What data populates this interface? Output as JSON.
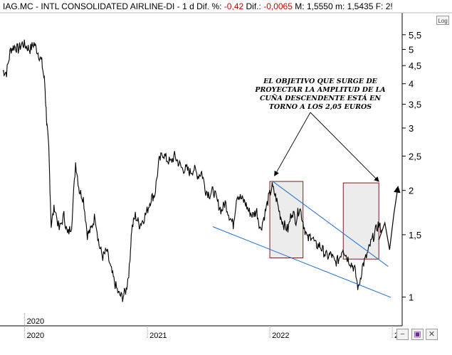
{
  "header": {
    "symbol": "IAG.MC",
    "name": "INTL CONSOLIDATED AIRLINE-DI",
    "period": "1 d",
    "dif_pct_label": "Dif. %:",
    "dif_pct": "-0,42",
    "dif_label": "Dif.:",
    "dif": "-0,0065",
    "max_label": "M:",
    "max": "1,5550",
    "min_label": "m:",
    "min": "1,5435",
    "f_label": "F: 2!"
  },
  "log_button": "Log",
  "toolbar": {
    "minus": "−",
    "save": "▣",
    "close": "✕"
  },
  "annotation": "EL OBJETIVO QUE SURGE DE PROYECTAR LA AMPLITUD DE LA CUÑA DESCENDENTE ESTÁ EN TORNO A LOS 2,05 EUROS",
  "colors": {
    "price": "#000000",
    "wedge": "#1f6fd0",
    "box_border": "#7a1f1f",
    "box_fill": "#ececec",
    "accent_negative": "#d40000"
  },
  "chart_data": {
    "type": "line",
    "scale": "log",
    "ylim": [
      0.91,
      6.0
    ],
    "y_ticks": [
      {
        "value": 1,
        "label": "1"
      },
      {
        "value": 1.5,
        "label": "1,5"
      },
      {
        "value": 2,
        "label": "2"
      },
      {
        "value": 2.5,
        "label": "2,5"
      },
      {
        "value": 3,
        "label": "3"
      },
      {
        "value": 3.5,
        "label": "3,5"
      },
      {
        "value": 4,
        "label": "4"
      },
      {
        "value": 4.5,
        "label": "4,5"
      },
      {
        "value": 5,
        "label": "5"
      },
      {
        "value": 5.5,
        "label": "5,5"
      }
    ],
    "x_range": [
      "2019-10-28",
      "2023-01-20"
    ],
    "x_ticks": [
      {
        "date": "2020-01-01",
        "label": "2020"
      },
      {
        "date": "2021-01-01",
        "label": "2021"
      },
      {
        "date": "2022-01-01",
        "label": "2022"
      },
      {
        "date": "2023-01-01",
        "label": "202"
      }
    ],
    "inner_label": {
      "date": "2020-01-01",
      "label": "2020"
    },
    "series": [
      {
        "values_note": "",
        "x": [
          "2019-10-28",
          "2019-11-08",
          "2019-11-20",
          "2019-12-02",
          "2019-12-13",
          "2019-12-25",
          "2020-01-06",
          "2020-01-17",
          "2020-01-29",
          "2020-02-10",
          "2020-02-21",
          "2020-03-01",
          "2020-03-07",
          "2020-03-13",
          "2020-03-20",
          "2020-03-30",
          "2020-04-13",
          "2020-04-27",
          "2020-05-08",
          "2020-05-20",
          "2020-06-01",
          "2020-06-12",
          "2020-06-24",
          "2020-07-06",
          "2020-07-17",
          "2020-07-29",
          "2020-08-10",
          "2020-08-21",
          "2020-09-02",
          "2020-09-14",
          "2020-09-25",
          "2020-10-07",
          "2020-10-19",
          "2020-10-30",
          "2020-11-08",
          "2020-11-15",
          "2020-11-26",
          "2020-12-08",
          "2020-12-19",
          "2020-12-31",
          "2021-01-12",
          "2021-01-23",
          "2021-02-04",
          "2021-02-16",
          "2021-02-27",
          "2021-03-11",
          "2021-03-23",
          "2021-04-03",
          "2021-04-15",
          "2021-04-27",
          "2021-05-08",
          "2021-05-20",
          "2021-06-01",
          "2021-06-12",
          "2021-06-24",
          "2021-07-06",
          "2021-07-17",
          "2021-07-29",
          "2021-08-10",
          "2021-08-21",
          "2021-09-02",
          "2021-09-14",
          "2021-09-25",
          "2021-10-07",
          "2021-10-19",
          "2021-10-30",
          "2021-11-11",
          "2021-11-23",
          "2021-12-04",
          "2021-12-16",
          "2021-12-28",
          "2022-01-08",
          "2022-01-20",
          "2022-02-01",
          "2022-02-12",
          "2022-02-24",
          "2022-03-08",
          "2022-03-20",
          "2022-03-31",
          "2022-04-12",
          "2022-04-24",
          "2022-05-05",
          "2022-05-17",
          "2022-05-29",
          "2022-06-09",
          "2022-06-21",
          "2022-07-03",
          "2022-07-14",
          "2022-07-26",
          "2022-08-07",
          "2022-08-18",
          "2022-08-30",
          "2022-09-11",
          "2022-09-22",
          "2022-10-04",
          "2022-10-16",
          "2022-10-27",
          "2022-11-08",
          "2022-11-20",
          "2022-12-01"
        ],
        "y": [
          4.35,
          4.3,
          5.0,
          5.1,
          5.0,
          5.2,
          5.1,
          5.0,
          5.2,
          4.9,
          4.6,
          4.0,
          3.1,
          2.6,
          1.6,
          1.8,
          1.55,
          1.7,
          1.5,
          1.6,
          2.4,
          2.0,
          1.9,
          1.5,
          1.55,
          1.7,
          1.4,
          1.3,
          1.35,
          1.2,
          1.1,
          1.02,
          1.0,
          1.05,
          1.2,
          1.55,
          1.7,
          1.6,
          1.65,
          1.75,
          1.9,
          1.95,
          2.4,
          2.55,
          2.45,
          2.4,
          2.5,
          2.4,
          2.3,
          2.3,
          2.25,
          2.3,
          2.2,
          2.25,
          2.0,
          1.95,
          2.0,
          1.85,
          1.75,
          1.85,
          1.7,
          1.6,
          1.95,
          1.9,
          1.85,
          1.75,
          1.7,
          1.75,
          1.55,
          1.7,
          1.9,
          2.05,
          1.9,
          1.7,
          1.6,
          1.55,
          1.75,
          1.65,
          1.8,
          1.6,
          1.45,
          1.5,
          1.4,
          1.4,
          1.35,
          1.3,
          1.32,
          1.25,
          1.28,
          1.38,
          1.3,
          1.25,
          1.2,
          1.05,
          1.22,
          1.3,
          1.4,
          1.5,
          1.6,
          1.55
        ]
      }
    ],
    "overlay_lines": [
      {
        "name": "",
        "from": {
          "date": "2021-07-15",
          "value": 1.58
        },
        "to": {
          "date": "2022-12-28",
          "value": 0.998
        }
      },
      {
        "name": "",
        "from": {
          "date": "2022-01-10",
          "value": 2.12
        },
        "to": {
          "date": "2022-12-20",
          "value": 1.22
        }
      }
    ],
    "boxes": [
      {
        "from": "2022-01-01",
        "to": "2022-04-10",
        "top": 2.12,
        "bottom": 1.29
      },
      {
        "from": "2022-08-08",
        "to": "2022-11-22",
        "top": 2.1,
        "bottom": 1.28
      }
    ],
    "projection": [
      {
        "date": "2022-11-22",
        "value": 1.45
      },
      {
        "date": "2022-12-10",
        "value": 1.62
      },
      {
        "date": "2022-12-24",
        "value": 1.36
      },
      {
        "date": "2023-01-06",
        "value": 1.72
      },
      {
        "date": "2023-01-18",
        "value": 2.05
      }
    ],
    "arrows_from_annotation": [
      {
        "to_date": "2022-01-15",
        "to_value": 2.2
      },
      {
        "to_date": "2022-11-22",
        "to_value": 2.12
      }
    ]
  }
}
